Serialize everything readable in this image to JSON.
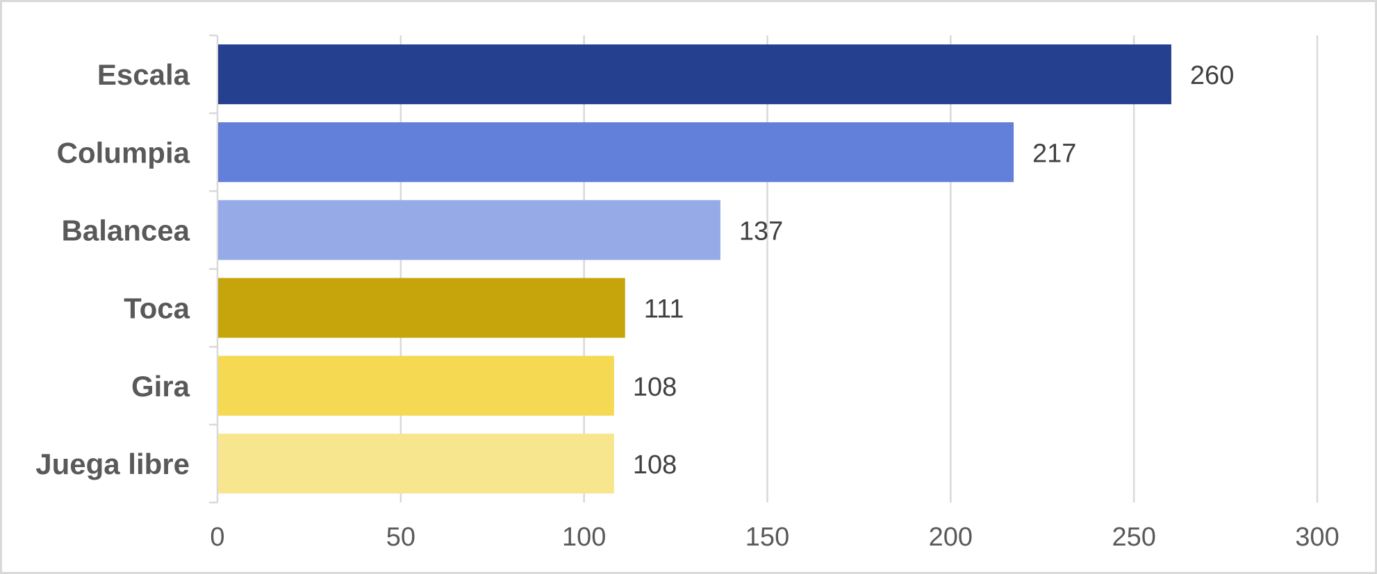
{
  "chart_data": {
    "type": "bar",
    "orientation": "horizontal",
    "title": "",
    "xlabel": "",
    "ylabel": "",
    "categories": [
      "Escala",
      "Columpia",
      "Balancea",
      "Toca",
      "Gira",
      "Juega libre"
    ],
    "values": [
      260,
      217,
      137,
      111,
      108,
      108
    ],
    "colors": [
      "#25408f",
      "#6280d9",
      "#95aae6",
      "#c6a40b",
      "#f5d952",
      "#f8e68f"
    ],
    "xlim": [
      0,
      300
    ],
    "xticks": [
      0,
      50,
      100,
      150,
      200,
      250,
      300
    ],
    "grid": true,
    "legend": "none",
    "data_labels": true
  }
}
